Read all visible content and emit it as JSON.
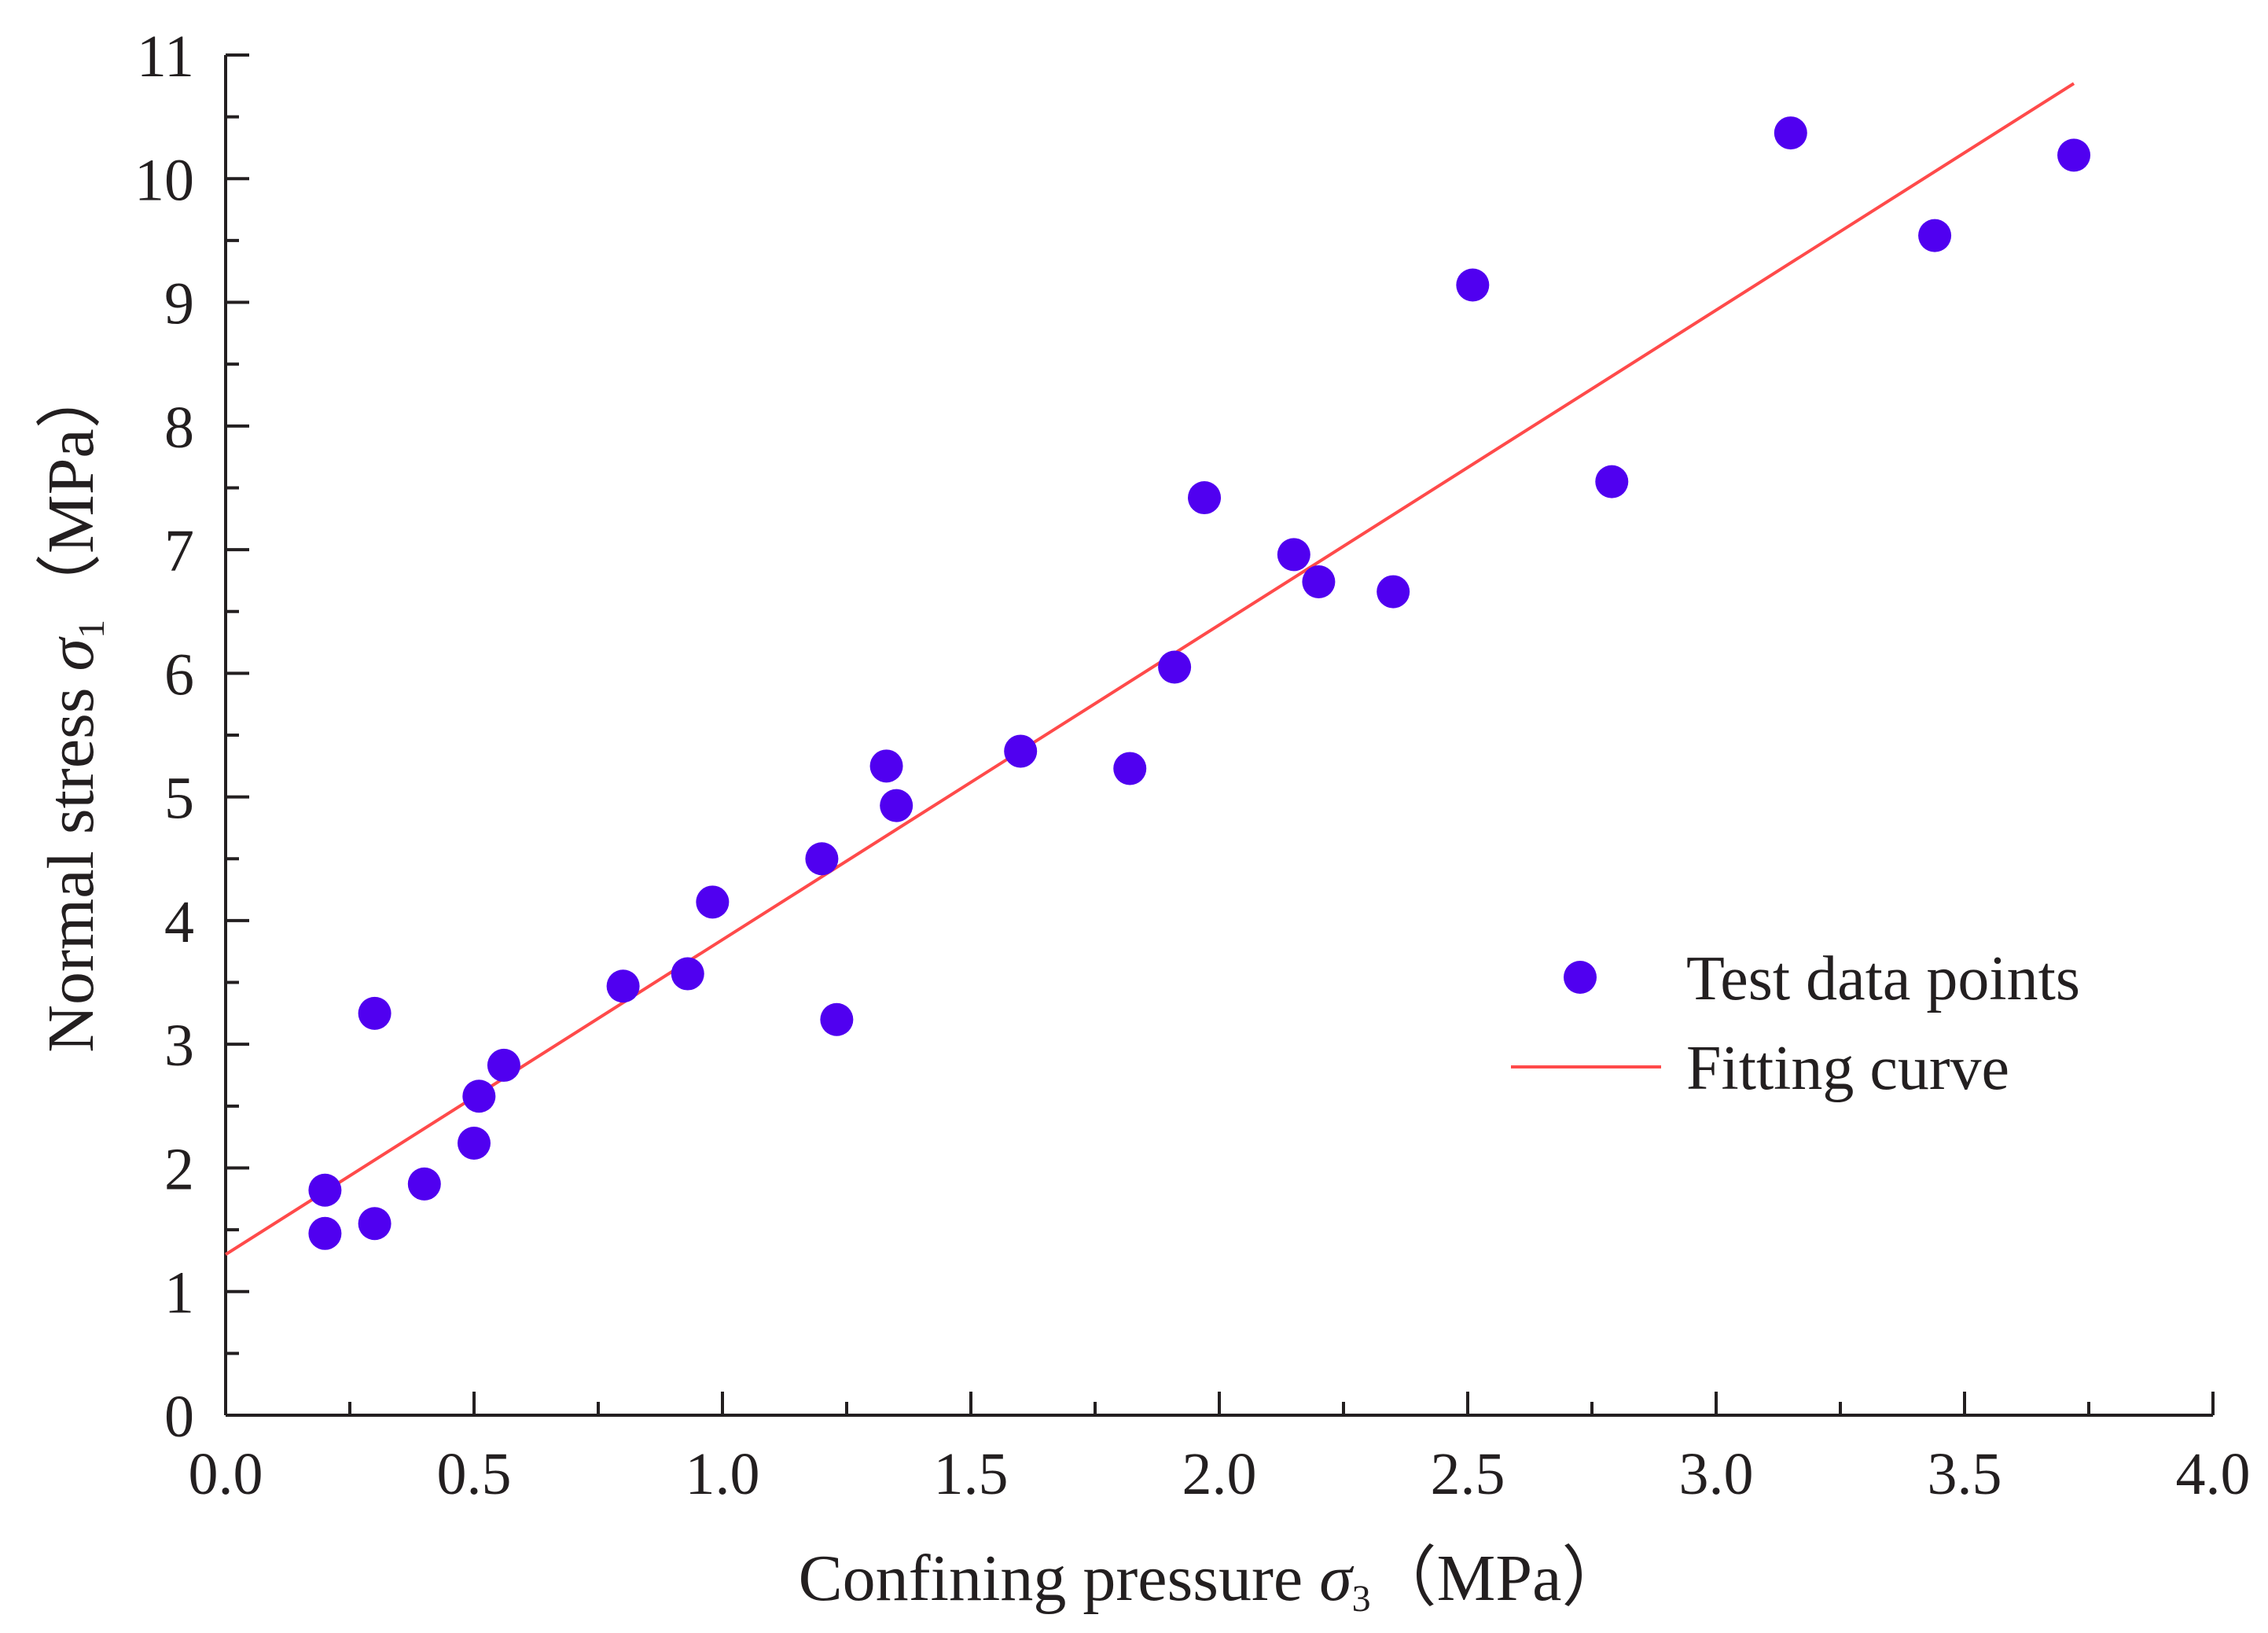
{
  "chart_data": {
    "type": "scatter",
    "title": "",
    "xlabel": {
      "prefix": "Confining pressure ",
      "symbol": "σ",
      "subscript": "3",
      "unit": "（MPa）"
    },
    "ylabel": {
      "prefix": "Normal stress ",
      "symbol": "σ",
      "subscript": "1",
      "unit": "（MPa）"
    },
    "xlim": [
      0.0,
      4.0
    ],
    "ylim": [
      0,
      11
    ],
    "x_ticks": [
      "0.0",
      "0.5",
      "1.0",
      "1.5",
      "2.0",
      "2.5",
      "3.0",
      "3.5",
      "4.0"
    ],
    "x_tick_values": [
      0.0,
      0.5,
      1.0,
      1.5,
      2.0,
      2.5,
      3.0,
      3.5,
      4.0
    ],
    "y_ticks": [
      "0",
      "1",
      "2",
      "3",
      "4",
      "5",
      "6",
      "7",
      "8",
      "9",
      "10",
      "11"
    ],
    "y_tick_values": [
      0,
      1,
      2,
      3,
      4,
      5,
      6,
      7,
      8,
      9,
      10,
      11
    ],
    "grid": false,
    "legend_position": "right-middle",
    "series": [
      {
        "name": "Test data points",
        "kind": "scatter",
        "color": "#5000f0",
        "points": [
          [
            0.2,
            1.82
          ],
          [
            0.2,
            1.47
          ],
          [
            0.3,
            3.25
          ],
          [
            0.3,
            1.55
          ],
          [
            0.4,
            1.87
          ],
          [
            0.5,
            2.2
          ],
          [
            0.51,
            2.58
          ],
          [
            0.56,
            2.83
          ],
          [
            0.8,
            3.47
          ],
          [
            0.93,
            3.57
          ],
          [
            0.98,
            4.15
          ],
          [
            1.2,
            4.5
          ],
          [
            1.23,
            3.2
          ],
          [
            1.33,
            5.25
          ],
          [
            1.35,
            4.93
          ],
          [
            1.6,
            5.37
          ],
          [
            1.82,
            5.23
          ],
          [
            1.91,
            6.05
          ],
          [
            1.97,
            7.42
          ],
          [
            2.15,
            6.96
          ],
          [
            2.2,
            6.74
          ],
          [
            2.35,
            6.66
          ],
          [
            2.51,
            9.14
          ],
          [
            2.79,
            7.55
          ],
          [
            3.15,
            10.37
          ],
          [
            3.44,
            9.54
          ],
          [
            3.72,
            10.19
          ]
        ]
      },
      {
        "name": "Fitting curve",
        "kind": "line",
        "color": "#ff4a4a",
        "points": [
          [
            0.0,
            1.3
          ],
          [
            3.72,
            10.77
          ]
        ]
      }
    ]
  }
}
